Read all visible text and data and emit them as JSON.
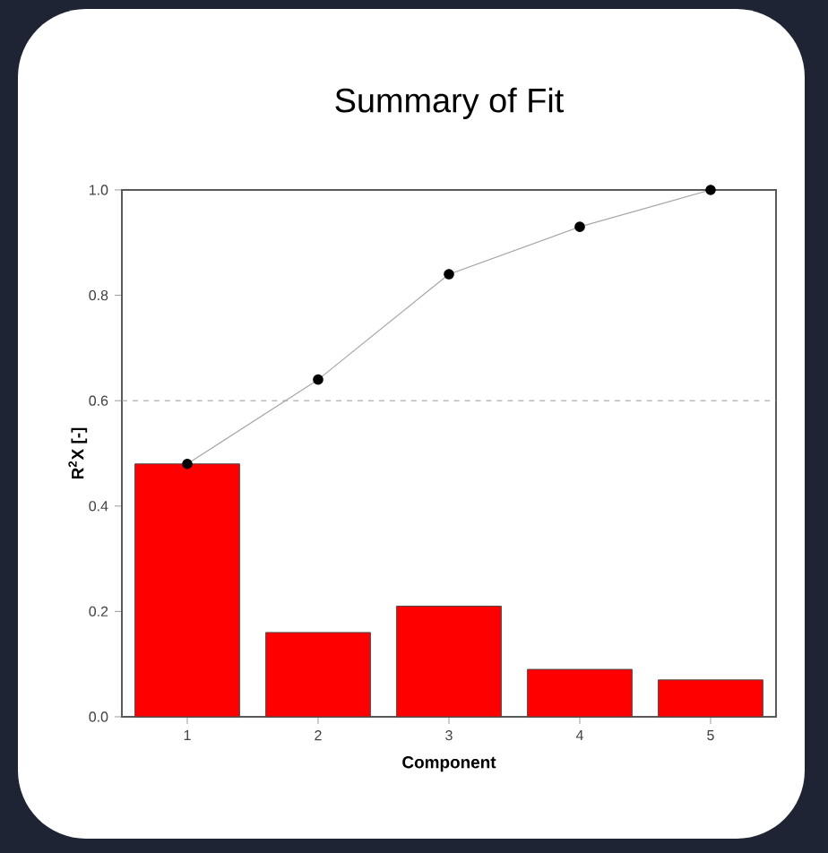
{
  "chart_data": {
    "type": "bar",
    "title": "Summary of Fit",
    "xlabel": "Component",
    "ylabel": "R$^{2}$X  [-]",
    "categories": [
      "1",
      "2",
      "3",
      "4",
      "5"
    ],
    "series": [
      {
        "color": "#ff0000",
        "values": [
          0.48,
          0.16,
          0.21,
          0.09,
          0.07
        ]
      },
      {
        "type": "line",
        "color": "#000000",
        "marker": "circle",
        "values": [
          0.48,
          0.64,
          0.84,
          0.93,
          1.0
        ]
      }
    ],
    "ylim": [
      0,
      1.0
    ],
    "yticks": [
      {
        "value": 0,
        "label": "0.0"
      },
      {
        "value": 0.2,
        "label": "0.2"
      },
      {
        "value": 0.4,
        "label": "0.4"
      },
      {
        "value": 0.6,
        "label": "0.6"
      },
      {
        "value": 0.8,
        "label": "0.8"
      },
      {
        "value": 1.0,
        "label": "1.0"
      }
    ],
    "ref_lines": [
      {
        "axis": "y",
        "value": 0.6,
        "color": "#999999",
        "line_style": "dashed"
      }
    ],
    "grid": false
  }
}
